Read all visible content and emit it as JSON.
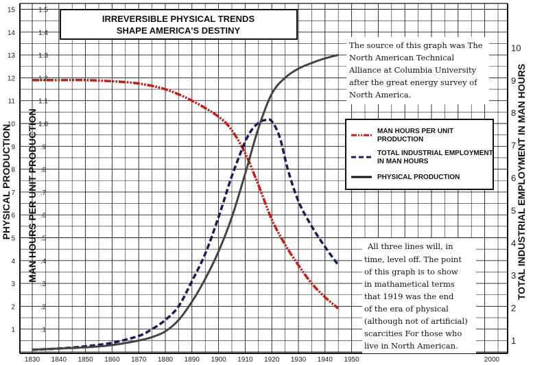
{
  "chart_data": {
    "type": "line",
    "title_lines": [
      "IRREVERSIBLE PHYSICAL TRENDS",
      "SHAPE AMERICA'S DESTINY"
    ],
    "ylabel_left_outer": "PHYSICAL PRODUCTION",
    "ylabel_left_inner": "MAN HOURS PER UNIT PRODUCTION",
    "ylabel_right": "TOTAL INDUSTRIAL EMPLOYMENT IN MAN HOURS",
    "x_ticks": [
      "1830",
      "1840",
      "1850",
      "1860",
      "1870",
      "1880",
      "1890",
      "1900",
      "1910",
      "1920",
      "1930",
      "1940",
      "1950",
      "2000"
    ],
    "y_left_ticks": [
      "1",
      "2",
      "3",
      "4",
      "5",
      "6",
      "7",
      "8",
      "9",
      "10",
      "11",
      "12",
      "13",
      "14",
      "15"
    ],
    "y_inner_ticks": [
      ".1",
      ".2",
      ".3",
      ".4",
      ".5",
      ".6",
      ".7",
      ".8",
      ".9",
      "1.0",
      "1.1",
      "1.2",
      "1.3",
      "1.4",
      "1.5"
    ],
    "y_right_ticks": [
      "1",
      "2",
      "3",
      "4",
      "5",
      "6",
      "7",
      "8",
      "9",
      "10"
    ],
    "xlim": [
      1828,
      1950
    ],
    "ylim": [
      0,
      15.5
    ],
    "legend": {
      "position": "right",
      "entries": [
        {
          "line1": "MAN HOURS PER UNIT",
          "line2": "PRODUCTION",
          "color": "#cc1a10",
          "style": "dash-dot"
        },
        {
          "line1": "TOTAL INDUSTRIAL EMPLOYMENT",
          "line2": "IN MAN HOURS",
          "color": "#1a1a5e",
          "style": "dashed"
        },
        {
          "line1": "PHYSICAL PRODUCTION",
          "line2": "",
          "color": "#444444",
          "style": "solid"
        }
      ]
    },
    "series": [
      {
        "key": "man_hours",
        "color": "#cc1a10",
        "style": "dash-dot",
        "x": [
          1830,
          1840,
          1850,
          1860,
          1870,
          1880,
          1890,
          1900,
          1905,
          1910,
          1915,
          1920,
          1925,
          1930,
          1935,
          1940,
          1945
        ],
        "y": [
          11.9,
          11.9,
          11.9,
          11.85,
          11.75,
          11.5,
          11.0,
          10.3,
          9.7,
          8.7,
          7.3,
          5.8,
          4.7,
          3.8,
          3.0,
          2.4,
          1.9
        ]
      },
      {
        "key": "employment",
        "color": "#1a1a5e",
        "style": "dashed",
        "x": [
          1830,
          1840,
          1850,
          1860,
          1870,
          1875,
          1880,
          1885,
          1890,
          1895,
          1900,
          1905,
          1910,
          1913,
          1916,
          1918,
          1920,
          1923,
          1926,
          1930,
          1935,
          1940,
          1945
        ],
        "y": [
          0.1,
          0.15,
          0.25,
          0.4,
          0.7,
          1.0,
          1.4,
          2.0,
          3.1,
          4.3,
          5.9,
          7.7,
          9.2,
          9.8,
          10.1,
          10.15,
          10.1,
          9.4,
          8.0,
          6.6,
          5.5,
          4.6,
          3.8
        ]
      },
      {
        "key": "production",
        "color": "#444444",
        "style": "solid",
        "x": [
          1830,
          1840,
          1850,
          1860,
          1870,
          1875,
          1880,
          1885,
          1890,
          1895,
          1900,
          1905,
          1910,
          1915,
          1920,
          1925,
          1930,
          1935,
          1940,
          1945
        ],
        "y": [
          0.1,
          0.15,
          0.2,
          0.3,
          0.5,
          0.65,
          0.9,
          1.4,
          2.2,
          3.2,
          4.4,
          5.9,
          7.8,
          9.8,
          11.3,
          12.0,
          12.4,
          12.65,
          12.85,
          13.0
        ]
      }
    ],
    "annotations": [
      {
        "key": "source_note",
        "lines": [
          "The source of this graph was The",
          "North American Technical",
          "Alliance at Columbia University",
          "after the great energy survey of",
          "North America."
        ]
      },
      {
        "key": "summary_note",
        "lines": [
          "All three lines will, in",
          "time, level off. The point",
          "of this graph is to show",
          "in mathametical terms",
          "that 1919 was the end",
          "of the era of physical",
          "(although not of  artificial)",
          "scarcities  For those who",
          "live in North American."
        ]
      }
    ]
  }
}
